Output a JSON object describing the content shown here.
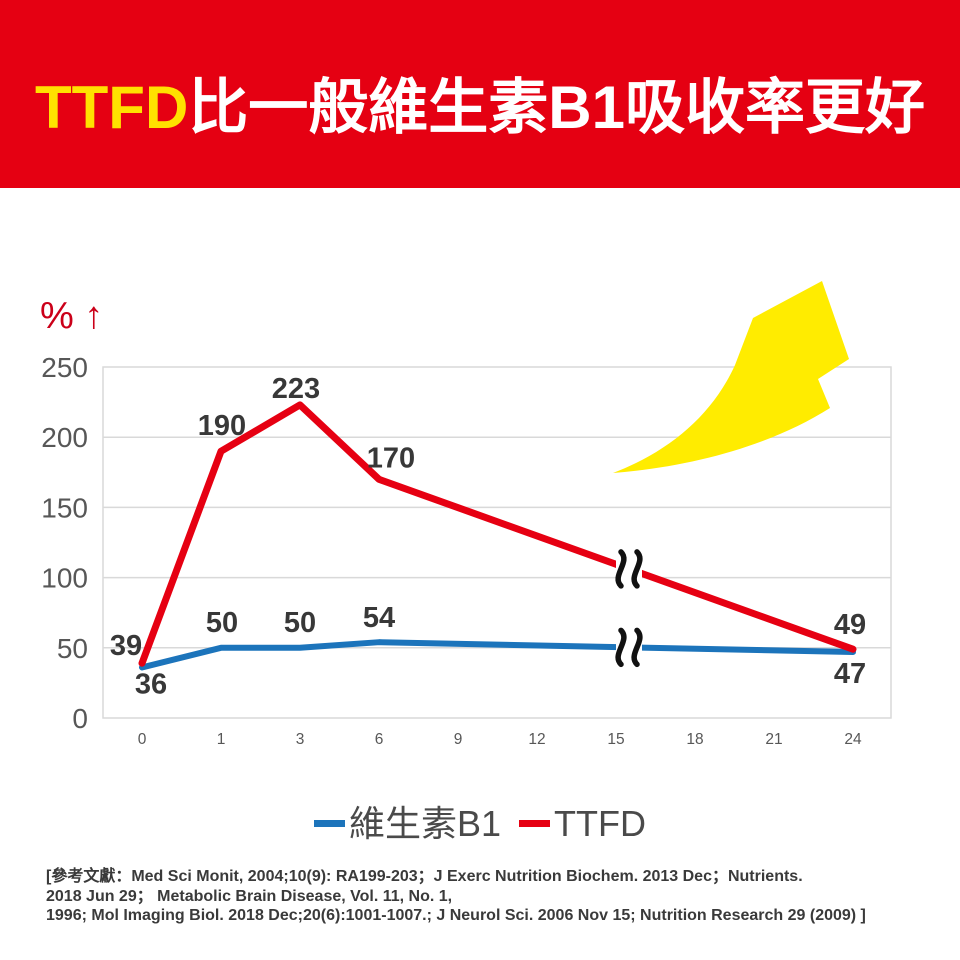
{
  "banner": {
    "highlight": "TTFD",
    "title": "比一般維生素B1吸收率更好",
    "bg_color": "#E50012",
    "highlight_color": "#FFE100",
    "text_color": "#FFFFFF"
  },
  "chart_data": {
    "type": "line",
    "ylabel": "% ↑",
    "categories": [
      "0",
      "1",
      "3",
      "6",
      "9",
      "12",
      "15",
      "18",
      "21",
      "24"
    ],
    "ylim": [
      0,
      250
    ],
    "yticks": [
      0,
      50,
      100,
      150,
      200,
      250
    ],
    "grid": true,
    "legend_position": "bottom",
    "axis_break": {
      "between_categories": [
        "15",
        "18"
      ],
      "on_series": "both"
    },
    "series": [
      {
        "name": "維生素B1",
        "color": "#1C74BB",
        "points": [
          {
            "x": "0",
            "y": 36
          },
          {
            "x": "1",
            "y": 50
          },
          {
            "x": "3",
            "y": 50
          },
          {
            "x": "6",
            "y": 54
          },
          {
            "x": "24",
            "y": 47
          }
        ]
      },
      {
        "name": "TTFD",
        "color": "#E60012",
        "points": [
          {
            "x": "0",
            "y": 39
          },
          {
            "x": "1",
            "y": 190
          },
          {
            "x": "3",
            "y": 223
          },
          {
            "x": "6",
            "y": 170
          },
          {
            "x": "24",
            "y": 49
          }
        ]
      }
    ],
    "annotations": {
      "trend_arrow": {
        "shape": "curved-up-right",
        "color": "#FFEC00"
      }
    }
  },
  "legend": {
    "items": [
      {
        "label": "維生素B1",
        "color": "#1C74BB"
      },
      {
        "label": "TTFD",
        "color": "#E60012"
      }
    ]
  },
  "references": {
    "lines": [
      "[參考文獻：Med Sci Monit, 2004;10(9): RA199-203；J Exerc Nutrition Biochem. 2013 Dec；Nutrients.",
      "2018 Jun 29； Metabolic Brain Disease, Vol. 11, No. 1,",
      "1996; Mol Imaging Biol. 2018 Dec;20(6):1001-1007.; J Neurol Sci. 2006 Nov 15; Nutrition Research 29 (2009) ]"
    ]
  },
  "colors": {
    "grid": "#D9D9D9",
    "tick_label": "#575757",
    "data_label": "#383838",
    "ylabel": "#CB0019",
    "legend_text": "#4A4A4A",
    "references_text": "#3A3A3A",
    "break_mark": "#111111"
  }
}
